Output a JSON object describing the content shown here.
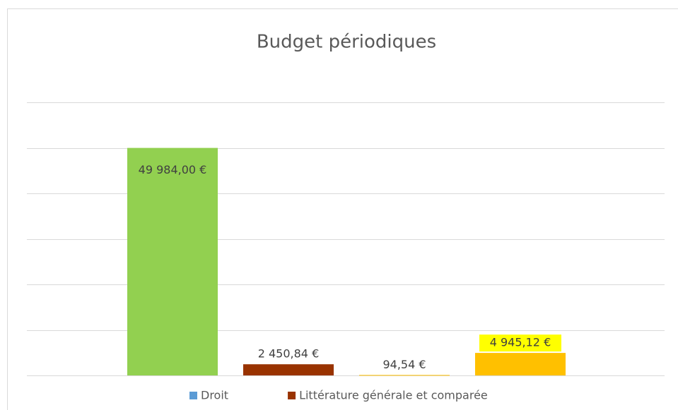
{
  "chart_data": {
    "type": "bar",
    "title": "Budget périodiques",
    "values": [
      49984,
      2450.84,
      94.54,
      4945.12
    ],
    "value_labels": [
      "49 984,00 €",
      "2 450,84 €",
      "94,54 €",
      "4 945,12 €"
    ],
    "colors": [
      "#92d050",
      "#993300",
      "#ffc000",
      "#ffc000"
    ],
    "ylim": [
      0,
      60000
    ],
    "yticks": [
      0,
      10000,
      20000,
      30000,
      40000,
      50000,
      60000
    ],
    "grid": true,
    "legend": [
      {
        "name": "Droit",
        "color": "#5b9bd5"
      },
      {
        "name": "Littérature générale et comparée",
        "color": "#993300"
      }
    ]
  }
}
